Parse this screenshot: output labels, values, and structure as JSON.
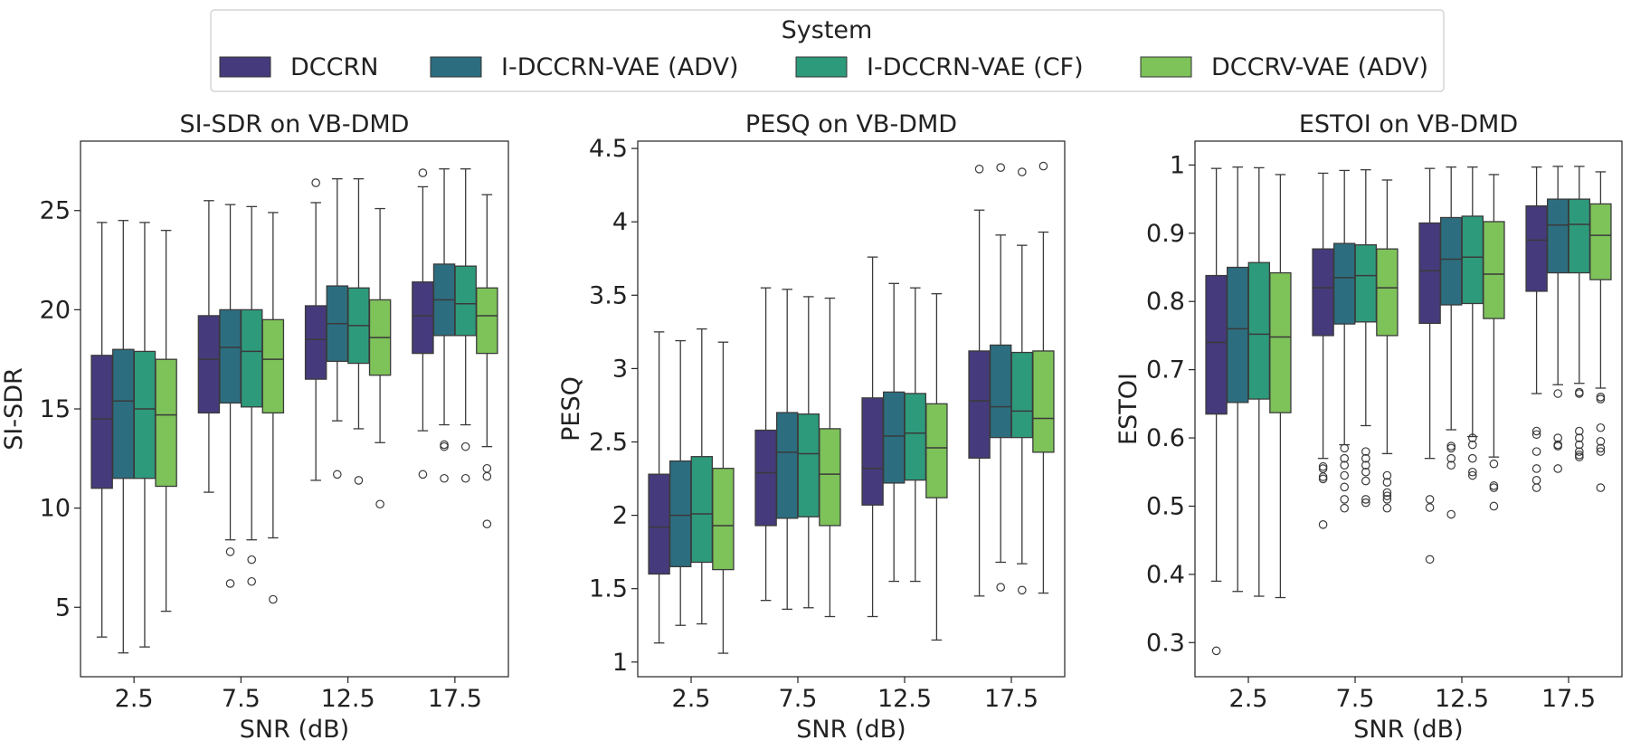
{
  "legend": {
    "title": "System",
    "placement": "top-center"
  },
  "chart_data": [
    {
      "type": "box",
      "title": "SI-SDR on VB-DMD",
      "xlabel": "SNR (dB)",
      "ylabel": "SI-SDR",
      "categories": [
        "2.5",
        "7.5",
        "12.5",
        "17.5"
      ],
      "ylim": [
        1.5,
        28.5
      ],
      "yticks": [
        5,
        10,
        15,
        20,
        25
      ],
      "series": [
        {
          "name": "DCCRN",
          "color": "#453b7c",
          "boxes": [
            {
              "whislo": 3.5,
              "q1": 11.0,
              "med": 14.5,
              "q3": 17.7,
              "whishi": 24.4,
              "fliers": []
            },
            {
              "whislo": 10.8,
              "q1": 14.8,
              "med": 17.5,
              "q3": 19.7,
              "whishi": 25.5,
              "fliers": []
            },
            {
              "whislo": 11.4,
              "q1": 16.5,
              "med": 18.5,
              "q3": 20.2,
              "whishi": 25.4,
              "fliers": [
                26.4
              ]
            },
            {
              "whislo": 13.9,
              "q1": 17.8,
              "med": 19.7,
              "q3": 21.4,
              "whishi": 26.2,
              "fliers": [
                26.9,
                11.7
              ]
            }
          ]
        },
        {
          "name": "I-DCCRN-VAE (ADV)",
          "color": "#2c6e80",
          "boxes": [
            {
              "whislo": 2.7,
              "q1": 11.5,
              "med": 15.4,
              "q3": 18.0,
              "whishi": 24.5,
              "fliers": []
            },
            {
              "whislo": 8.4,
              "q1": 15.3,
              "med": 18.1,
              "q3": 20.0,
              "whishi": 25.3,
              "fliers": [
                7.8,
                6.2
              ]
            },
            {
              "whislo": 14.4,
              "q1": 17.4,
              "med": 19.3,
              "q3": 21.2,
              "whishi": 26.6,
              "fliers": [
                11.7
              ]
            },
            {
              "whislo": 14.2,
              "q1": 18.7,
              "med": 20.5,
              "q3": 22.3,
              "whishi": 27.1,
              "fliers": [
                13.2,
                13.1,
                11.5
              ]
            }
          ]
        },
        {
          "name": "I-DCCRN-VAE (CF)",
          "color": "#2e9a7c",
          "boxes": [
            {
              "whislo": 3.0,
              "q1": 11.5,
              "med": 15.0,
              "q3": 17.9,
              "whishi": 24.4,
              "fliers": []
            },
            {
              "whislo": 8.4,
              "q1": 15.1,
              "med": 17.9,
              "q3": 20.0,
              "whishi": 25.2,
              "fliers": [
                7.4,
                6.3
              ]
            },
            {
              "whislo": 14.0,
              "q1": 17.3,
              "med": 19.2,
              "q3": 21.1,
              "whishi": 26.6,
              "fliers": [
                11.4
              ]
            },
            {
              "whislo": 14.2,
              "q1": 18.7,
              "med": 20.3,
              "q3": 22.2,
              "whishi": 27.1,
              "fliers": [
                13.1,
                11.5
              ]
            }
          ]
        },
        {
          "name": "DCCRV-VAE (ADV)",
          "color": "#7ec25a",
          "boxes": [
            {
              "whislo": 4.8,
              "q1": 11.1,
              "med": 14.7,
              "q3": 17.5,
              "whishi": 24.0,
              "fliers": []
            },
            {
              "whislo": 8.5,
              "q1": 14.8,
              "med": 17.5,
              "q3": 19.5,
              "whishi": 24.9,
              "fliers": [
                5.4
              ]
            },
            {
              "whislo": 13.3,
              "q1": 16.7,
              "med": 18.6,
              "q3": 20.5,
              "whishi": 25.1,
              "fliers": [
                10.2
              ]
            },
            {
              "whislo": 13.1,
              "q1": 17.8,
              "med": 19.7,
              "q3": 21.1,
              "whishi": 25.8,
              "fliers": [
                12.0,
                11.6,
                9.2
              ]
            }
          ]
        }
      ]
    },
    {
      "type": "box",
      "title": "PESQ on VB-DMD",
      "xlabel": "SNR (dB)",
      "ylabel": "PESQ",
      "categories": [
        "2.5",
        "7.5",
        "12.5",
        "17.5"
      ],
      "ylim": [
        0.9,
        4.55
      ],
      "yticks": [
        1.0,
        1.5,
        2.0,
        2.5,
        3.0,
        3.5,
        4.0,
        4.5
      ],
      "series": [
        {
          "name": "DCCRN",
          "color": "#453b7c",
          "boxes": [
            {
              "whislo": 1.13,
              "q1": 1.6,
              "med": 1.92,
              "q3": 2.28,
              "whishi": 3.25,
              "fliers": []
            },
            {
              "whislo": 1.42,
              "q1": 1.93,
              "med": 2.29,
              "q3": 2.58,
              "whishi": 3.55,
              "fliers": []
            },
            {
              "whislo": 1.31,
              "q1": 2.07,
              "med": 2.32,
              "q3": 2.8,
              "whishi": 3.76,
              "fliers": []
            },
            {
              "whislo": 1.45,
              "q1": 2.39,
              "med": 2.78,
              "q3": 3.12,
              "whishi": 4.08,
              "fliers": [
                4.36
              ]
            }
          ]
        },
        {
          "name": "I-DCCRN-VAE (ADV)",
          "color": "#2c6e80",
          "boxes": [
            {
              "whislo": 1.25,
              "q1": 1.65,
              "med": 2.0,
              "q3": 2.37,
              "whishi": 3.19,
              "fliers": []
            },
            {
              "whislo": 1.36,
              "q1": 1.98,
              "med": 2.43,
              "q3": 2.7,
              "whishi": 3.54,
              "fliers": []
            },
            {
              "whislo": 1.55,
              "q1": 2.22,
              "med": 2.54,
              "q3": 2.84,
              "whishi": 3.58,
              "fliers": []
            },
            {
              "whislo": 1.68,
              "q1": 2.53,
              "med": 2.74,
              "q3": 3.16,
              "whishi": 3.91,
              "fliers": [
                4.37,
                1.51
              ]
            }
          ]
        },
        {
          "name": "I-DCCRN-VAE (CF)",
          "color": "#2e9a7c",
          "boxes": [
            {
              "whislo": 1.26,
              "q1": 1.68,
              "med": 2.01,
              "q3": 2.4,
              "whishi": 3.27,
              "fliers": []
            },
            {
              "whislo": 1.37,
              "q1": 1.99,
              "med": 2.42,
              "q3": 2.69,
              "whishi": 3.49,
              "fliers": []
            },
            {
              "whislo": 1.55,
              "q1": 2.24,
              "med": 2.56,
              "q3": 2.83,
              "whishi": 3.55,
              "fliers": []
            },
            {
              "whislo": 1.67,
              "q1": 2.53,
              "med": 2.71,
              "q3": 3.11,
              "whishi": 3.84,
              "fliers": [
                4.34,
                1.49
              ]
            }
          ]
        },
        {
          "name": "DCCRV-VAE (ADV)",
          "color": "#7ec25a",
          "boxes": [
            {
              "whislo": 1.06,
              "q1": 1.63,
              "med": 1.93,
              "q3": 2.32,
              "whishi": 3.18,
              "fliers": []
            },
            {
              "whislo": 1.31,
              "q1": 1.93,
              "med": 2.28,
              "q3": 2.59,
              "whishi": 3.48,
              "fliers": []
            },
            {
              "whislo": 1.15,
              "q1": 2.12,
              "med": 2.46,
              "q3": 2.76,
              "whishi": 3.51,
              "fliers": []
            },
            {
              "whislo": 1.47,
              "q1": 2.43,
              "med": 2.66,
              "q3": 3.12,
              "whishi": 3.93,
              "fliers": [
                4.38
              ]
            }
          ]
        }
      ]
    },
    {
      "type": "box",
      "title": "ESTOI on VB-DMD",
      "xlabel": "SNR (dB)",
      "ylabel": "ESTOI",
      "categories": [
        "2.5",
        "7.5",
        "12.5",
        "17.5"
      ],
      "ylim": [
        0.25,
        1.035
      ],
      "yticks": [
        0.3,
        0.4,
        0.5,
        0.6,
        0.7,
        0.8,
        0.9,
        1.0
      ],
      "series": [
        {
          "name": "DCCRN",
          "color": "#453b7c",
          "boxes": [
            {
              "whislo": 0.39,
              "q1": 0.635,
              "med": 0.74,
              "q3": 0.838,
              "whishi": 0.995,
              "fliers": [
                0.288
              ]
            },
            {
              "whislo": 0.57,
              "q1": 0.75,
              "med": 0.82,
              "q3": 0.877,
              "whishi": 0.988,
              "fliers": [
                0.558,
                0.555,
                0.543,
                0.54,
                0.473
              ]
            },
            {
              "whislo": 0.57,
              "q1": 0.768,
              "med": 0.845,
              "q3": 0.915,
              "whishi": 0.995,
              "fliers": [
                0.51,
                0.498,
                0.422
              ]
            },
            {
              "whislo": 0.665,
              "q1": 0.815,
              "med": 0.89,
              "q3": 0.94,
              "whishi": 0.997,
              "fliers": [
                0.61,
                0.605,
                0.58,
                0.555,
                0.538,
                0.527
              ]
            }
          ]
        },
        {
          "name": "I-DCCRN-VAE (ADV)",
          "color": "#2c6e80",
          "boxes": [
            {
              "whislo": 0.375,
              "q1": 0.652,
              "med": 0.76,
              "q3": 0.85,
              "whishi": 0.997,
              "fliers": []
            },
            {
              "whislo": 0.59,
              "q1": 0.767,
              "med": 0.835,
              "q3": 0.885,
              "whishi": 0.992,
              "fliers": [
                0.585,
                0.57,
                0.56,
                0.545,
                0.528,
                0.51,
                0.497
              ]
            },
            {
              "whislo": 0.612,
              "q1": 0.795,
              "med": 0.862,
              "q3": 0.923,
              "whishi": 0.997,
              "fliers": [
                0.588,
                0.585,
                0.57,
                0.56,
                0.488
              ]
            },
            {
              "whislo": 0.678,
              "q1": 0.842,
              "med": 0.912,
              "q3": 0.95,
              "whishi": 0.998,
              "fliers": [
                0.665,
                0.6,
                0.59,
                0.588,
                0.555
              ]
            }
          ]
        },
        {
          "name": "I-DCCRN-VAE (CF)",
          "color": "#2e9a7c",
          "boxes": [
            {
              "whislo": 0.368,
              "q1": 0.657,
              "med": 0.752,
              "q3": 0.857,
              "whishi": 0.996,
              "fliers": []
            },
            {
              "whislo": 0.618,
              "q1": 0.77,
              "med": 0.838,
              "q3": 0.883,
              "whishi": 0.993,
              "fliers": [
                0.58,
                0.57,
                0.56,
                0.55,
                0.537,
                0.51,
                0.505
              ]
            },
            {
              "whislo": 0.602,
              "q1": 0.797,
              "med": 0.865,
              "q3": 0.925,
              "whishi": 0.997,
              "fliers": [
                0.6,
                0.59,
                0.57,
                0.55,
                0.545
              ]
            },
            {
              "whislo": 0.68,
              "q1": 0.842,
              "med": 0.913,
              "q3": 0.95,
              "whishi": 0.998,
              "fliers": [
                0.667,
                0.665,
                0.61,
                0.6,
                0.59,
                0.58,
                0.575,
                0.572
              ]
            }
          ]
        },
        {
          "name": "DCCRV-VAE (ADV)",
          "color": "#7ec25a",
          "boxes": [
            {
              "whislo": 0.366,
              "q1": 0.637,
              "med": 0.748,
              "q3": 0.842,
              "whishi": 0.986,
              "fliers": []
            },
            {
              "whislo": 0.577,
              "q1": 0.75,
              "med": 0.82,
              "q3": 0.877,
              "whishi": 0.978,
              "fliers": [
                0.545,
                0.535,
                0.52,
                0.515,
                0.51,
                0.497
              ]
            },
            {
              "whislo": 0.572,
              "q1": 0.775,
              "med": 0.84,
              "q3": 0.917,
              "whishi": 0.986,
              "fliers": [
                0.562,
                0.53,
                0.527,
                0.5
              ]
            },
            {
              "whislo": 0.673,
              "q1": 0.832,
              "med": 0.897,
              "q3": 0.943,
              "whishi": 0.99,
              "fliers": [
                0.66,
                0.657,
                0.615,
                0.595,
                0.585,
                0.58,
                0.527
              ]
            }
          ]
        }
      ]
    }
  ]
}
